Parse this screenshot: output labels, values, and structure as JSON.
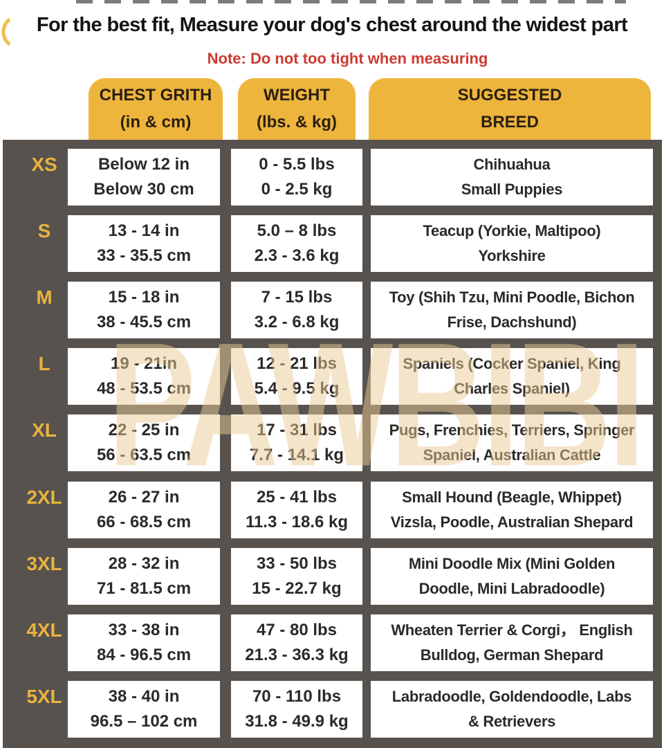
{
  "header": {
    "title": "For the best fit, Measure your dog's chest around the widest part",
    "note": "Note: Do not too tight when measuring"
  },
  "watermark": "PAWBIBI",
  "colors": {
    "header_tab_yellow": "#EEB53C",
    "table_background_gray": "#57524D",
    "size_label_gold": "#E9B33F",
    "note_red": "#CC3A32",
    "title_black": "#151412",
    "cell_text": "#2B2A27",
    "watermark_cream": "#EAC996"
  },
  "chart_data": {
    "type": "table",
    "title": "For the best fit, Measure your dog's chest around the widest part",
    "columns": [
      {
        "line1": "CHEST GRITH",
        "line2": "(in & cm)"
      },
      {
        "line1": "WEIGHT",
        "line2": "(lbs. & kg)"
      },
      {
        "line1": "SUGGESTED",
        "line2": "BREED"
      }
    ],
    "rows": [
      {
        "size": "XS",
        "chest": [
          "Below 12 in",
          "Below 30 cm"
        ],
        "weight": [
          "0 - 5.5 lbs",
          "0 - 2.5 kg"
        ],
        "breed": [
          "Chihuahua",
          "Small Puppies"
        ]
      },
      {
        "size": "S",
        "chest": [
          "13 - 14 in",
          "33 - 35.5 cm"
        ],
        "weight": [
          "5.0 – 8 lbs",
          "2.3 - 3.6 kg"
        ],
        "breed": [
          "Teacup (Yorkie, Maltipoo)",
          "Yorkshire"
        ]
      },
      {
        "size": "M",
        "chest": [
          "15 - 18 in",
          "38 - 45.5 cm"
        ],
        "weight": [
          "7 - 15 lbs",
          "3.2 - 6.8 kg"
        ],
        "breed": [
          "Toy (Shih Tzu, Mini Poodle, Bichon",
          "Frise, Dachshund)"
        ]
      },
      {
        "size": "L",
        "chest": [
          "19 - 21in",
          "48 - 53.5 cm"
        ],
        "weight": [
          "12 - 21 lbs",
          "5.4 - 9.5 kg"
        ],
        "breed": [
          "Spaniels (Cocker Spaniel, King",
          "Charles Spaniel)"
        ]
      },
      {
        "size": "XL",
        "chest": [
          "22 - 25 in",
          "56 - 63.5 cm"
        ],
        "weight": [
          "17 - 31 lbs",
          "7.7 - 14.1 kg"
        ],
        "breed": [
          "Pugs, Frenchies, Terriers, Springer",
          "Spaniel, Australian Cattle"
        ]
      },
      {
        "size": "2XL",
        "chest": [
          "26 - 27 in",
          "66 - 68.5 cm"
        ],
        "weight": [
          "25 - 41 lbs",
          "11.3 - 18.6 kg"
        ],
        "breed": [
          "Small Hound (Beagle, Whippet)",
          "Vizsla, Poodle, Australian Shepard"
        ]
      },
      {
        "size": "3XL",
        "chest": [
          "28 - 32 in",
          "71 - 81.5 cm"
        ],
        "weight": [
          "33 - 50 lbs",
          "15 - 22.7 kg"
        ],
        "breed": [
          "Mini Doodle Mix (Mini Golden",
          "Doodle, Mini Labradoodle)"
        ]
      },
      {
        "size": "4XL",
        "chest": [
          "33 - 38 in",
          "84 - 96.5 cm"
        ],
        "weight": [
          "47 - 80 lbs",
          "21.3 - 36.3 kg"
        ],
        "breed": [
          "Wheaten Terrier & Corgi， English",
          "Bulldog, German Shepard"
        ]
      },
      {
        "size": "5XL",
        "chest": [
          "38 - 40 in",
          "96.5 – 102 cm"
        ],
        "weight": [
          "70 - 110 lbs",
          "31.8 - 49.9 kg"
        ],
        "breed": [
          "Labradoodle, Goldendoodle, Labs",
          "& Retrievers"
        ]
      }
    ]
  }
}
